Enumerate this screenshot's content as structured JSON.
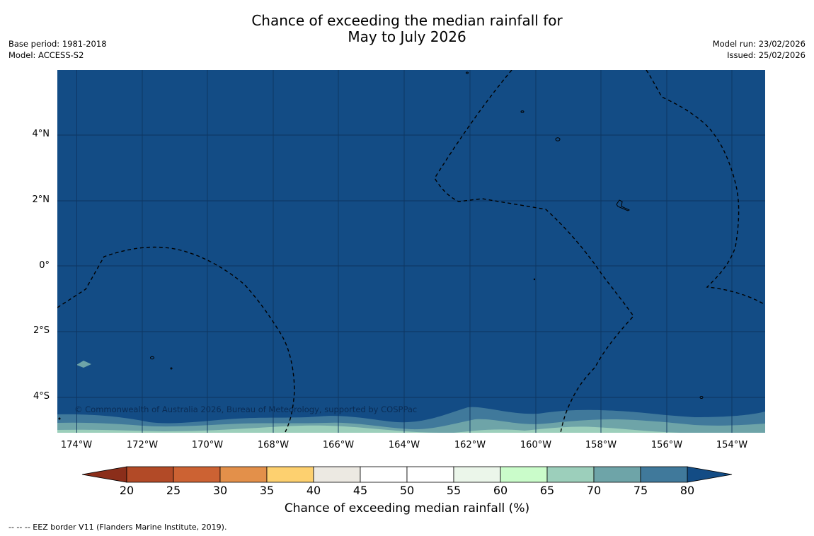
{
  "title": {
    "line1": "Chance of exceeding the median rainfall for",
    "line2": "May to July 2026"
  },
  "meta": {
    "base_period": "Base period: 1981-2018",
    "model": "Model: ACCESS-S2",
    "model_run": "Model run: 23/02/2026",
    "issued": "Issued: 25/02/2026"
  },
  "map": {
    "copyright": "© Commonwealth of Australia 2026, Bureau of Meteorology, supported by COSPPac",
    "lat_labels": [
      "4°N",
      "2°N",
      "0°",
      "2°S",
      "4°S"
    ],
    "lon_labels": [
      "174°W",
      "172°W",
      "170°W",
      "168°W",
      "166°W",
      "164°W",
      "162°W",
      "160°W",
      "158°W",
      "156°W",
      "154°W"
    ],
    "background_category": ">80",
    "colors": {
      "ocean_high": "#134c85",
      "band_75_80": "#40799b",
      "band_70_75": "#6ea4a8",
      "band_65_70": "#9ccfbb",
      "gridline": "#0e3560",
      "coast": "#000000"
    }
  },
  "colorbar": {
    "title": "Chance of exceeding median rainfall (%)",
    "ticks": [
      "20",
      "25",
      "30",
      "35",
      "40",
      "45",
      "50",
      "55",
      "60",
      "65",
      "70",
      "75",
      "80"
    ],
    "colors": [
      "#8b2e1a",
      "#b24a27",
      "#cc6233",
      "#e3904a",
      "#fdd06f",
      "#ece9e2",
      "#ffffff",
      "#ffffff",
      "#ebf6ea",
      "#cafcca",
      "#9ccfbb",
      "#6ea4a8",
      "#40799b",
      "#134c85"
    ]
  },
  "footnote": "--  --  -- EEZ border V11 (Flanders Marine Institute, 2019)."
}
